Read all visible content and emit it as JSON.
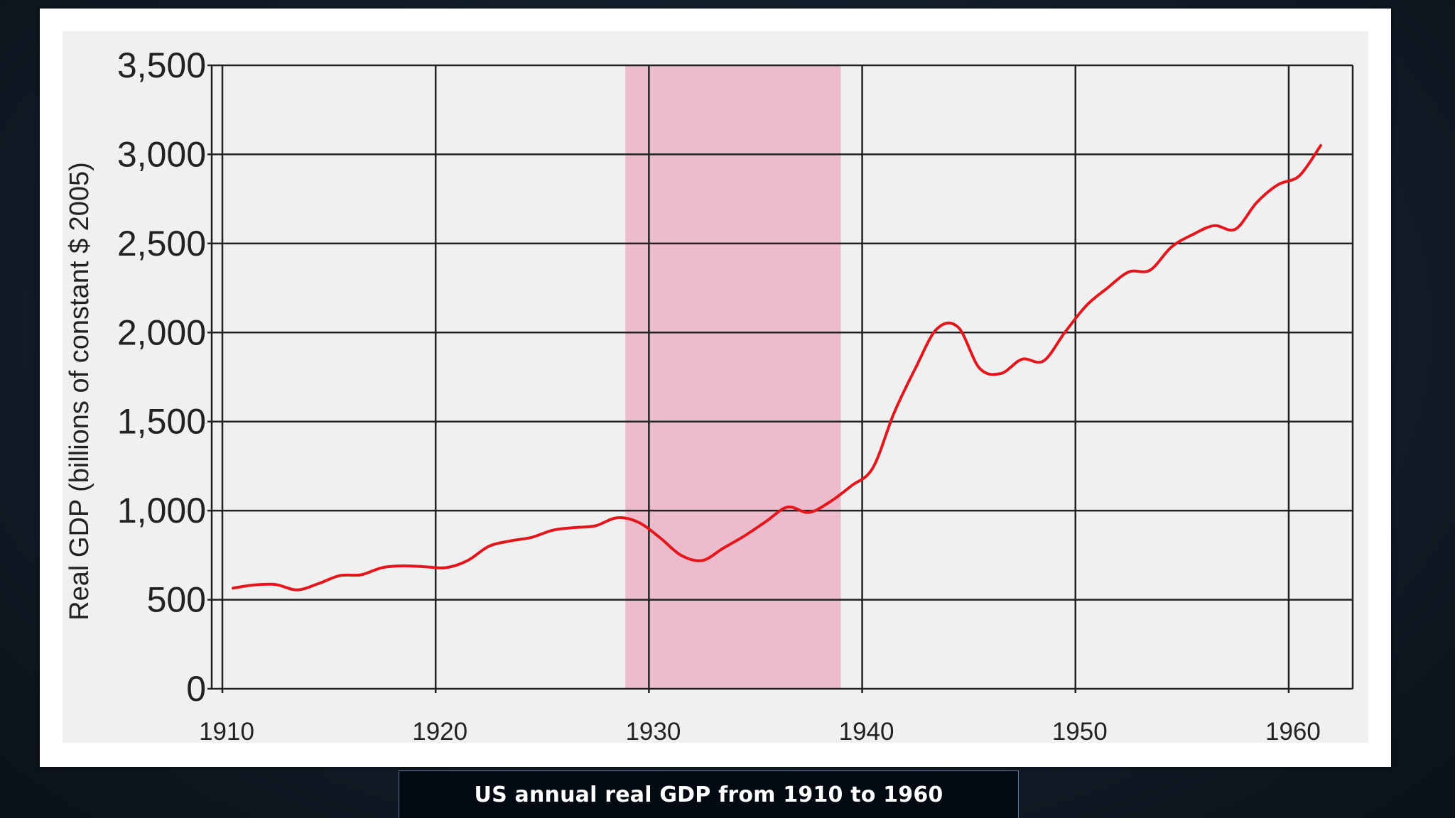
{
  "caption": "US annual real GDP from 1910 to 1960",
  "colors": {
    "line": "#e3161c",
    "shade": "#ecbccc",
    "plot_bg": "#f0f0f0",
    "grid": "#222222"
  },
  "chart_data": {
    "type": "line",
    "title": "",
    "xlabel": "",
    "ylabel": "Real GDP (billions of  constant $ 2005)",
    "xlim": [
      1909.5,
      1963
    ],
    "ylim": [
      0,
      3500
    ],
    "x_ticks": [
      1910,
      1920,
      1930,
      1940,
      1950,
      1960
    ],
    "y_ticks": [
      0,
      500,
      1000,
      1500,
      2000,
      2500,
      3000,
      3500
    ],
    "y_tick_labels": [
      "0",
      "500",
      "1,000",
      "1,500",
      "2,000",
      "2,500",
      "3,000",
      "3,500"
    ],
    "x_tick_labels": [
      "1910",
      "1920",
      "1930",
      "1940",
      "1950",
      "1960"
    ],
    "grid": true,
    "shaded_region": {
      "x_start": 1928.9,
      "x_end": 1939
    },
    "series": [
      {
        "x": [
          1910.5,
          1911.5,
          1912.5,
          1913.5,
          1914.5,
          1915.5,
          1916.5,
          1917.5,
          1918.5,
          1919.5,
          1920.5,
          1921.5,
          1922.5,
          1923.5,
          1924.5,
          1925.5,
          1926.5,
          1927.5,
          1928.5,
          1929.5,
          1930.5,
          1931.5,
          1932.5,
          1933.5,
          1934.5,
          1935.5,
          1936.5,
          1937.5,
          1938.5,
          1939.5,
          1940.5,
          1941.5,
          1942.5,
          1943.5,
          1944.5,
          1945.5,
          1946.5,
          1947.5,
          1948.5,
          1949.5,
          1950.5,
          1951.5,
          1952.5,
          1953.5,
          1954.5,
          1955.5,
          1956.5,
          1957.5,
          1958.5,
          1959.5,
          1960.5,
          1961.5
        ],
        "values": [
          565,
          583,
          585,
          555,
          590,
          635,
          640,
          680,
          690,
          685,
          680,
          720,
          800,
          830,
          850,
          890,
          905,
          915,
          960,
          935,
          850,
          750,
          720,
          790,
          860,
          940,
          1020,
          990,
          1050,
          1140,
          1240,
          1550,
          1800,
          2020,
          2030,
          1800,
          1770,
          1850,
          1840,
          2000,
          2150,
          2250,
          2340,
          2350,
          2480,
          2550,
          2600,
          2580,
          2730,
          2830,
          2880,
          3050
        ]
      }
    ]
  }
}
